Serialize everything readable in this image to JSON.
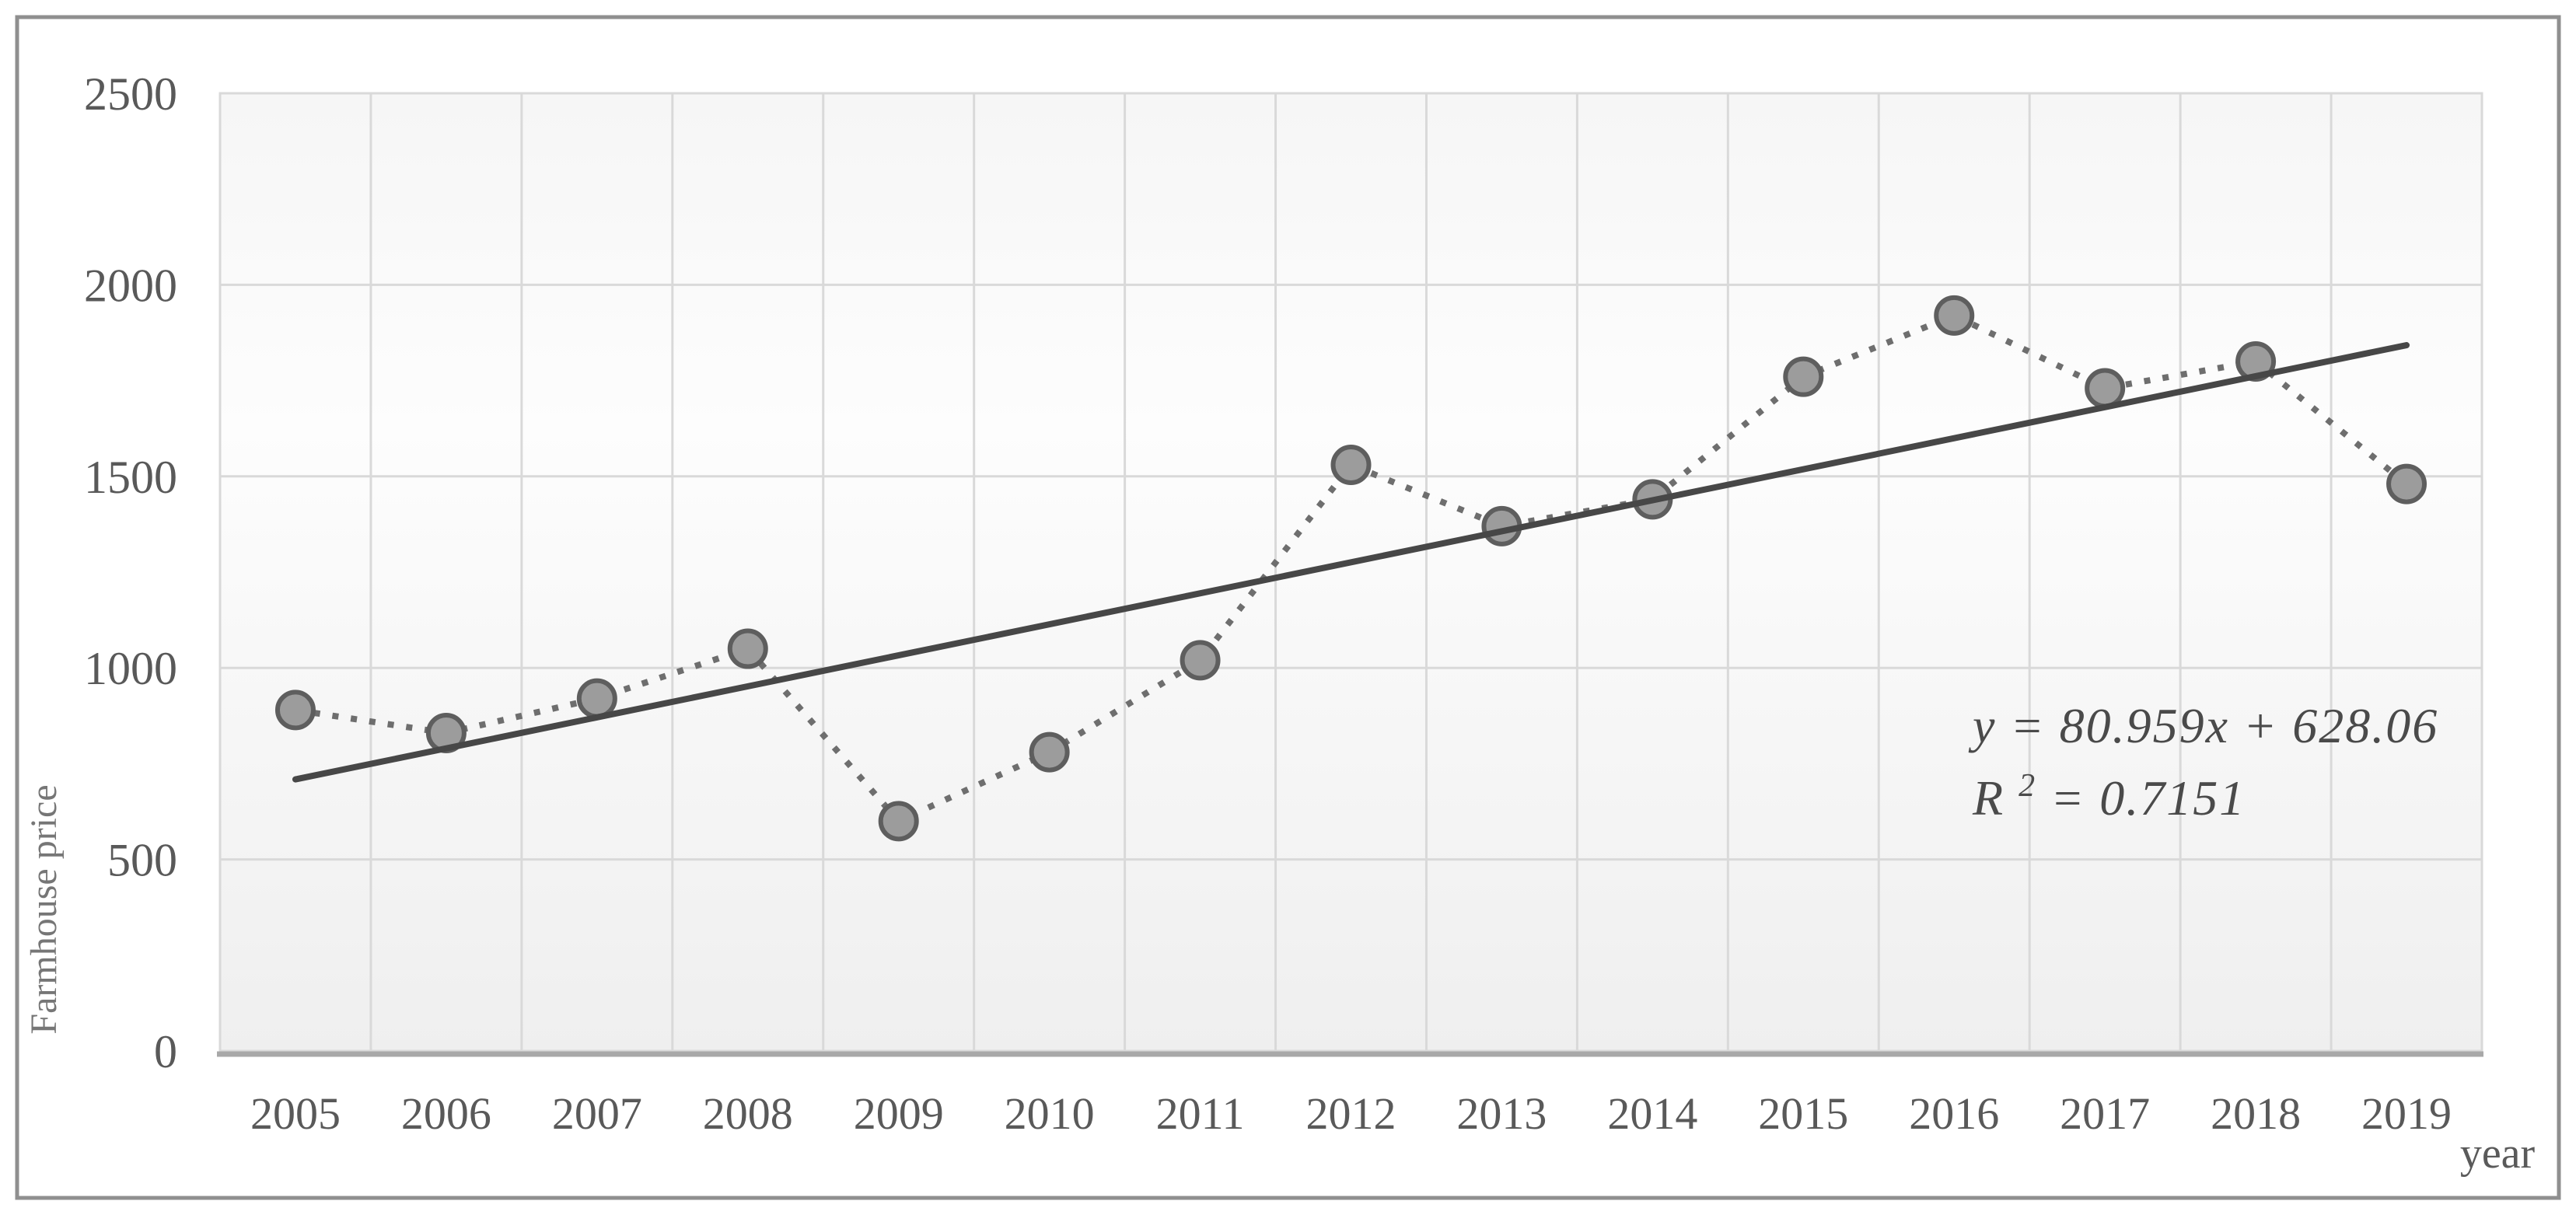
{
  "chart_data": {
    "type": "scatter",
    "title": "",
    "categories": [
      "2005",
      "2006",
      "2007",
      "2008",
      "2009",
      "2010",
      "2011",
      "2012",
      "2013",
      "2014",
      "2015",
      "2016",
      "2017",
      "2018",
      "2019"
    ],
    "series": [
      {
        "name": "Farmhouse price",
        "values": [
          890,
          830,
          920,
          1050,
          600,
          780,
          1020,
          1530,
          1370,
          1440,
          1760,
          1920,
          1730,
          1800,
          1480
        ]
      }
    ],
    "xlabel": "year",
    "ylabel": "Farmhouse  price",
    "y_ticks": [
      0,
      500,
      1000,
      1500,
      2000,
      2500
    ],
    "ylim": [
      0,
      2500
    ],
    "grid": true,
    "legend_position": "none",
    "marker": "circle",
    "series_line_style": "dotted",
    "trendline": {
      "type": "linear",
      "equation": "y = 80.959x + 628.06",
      "r2_text": "R² = 0.7151",
      "r2_prefix": "R",
      "r2_sup": "2",
      "r2_rest": " = 0.7151",
      "slope": 80.959,
      "intercept": 628.06,
      "x_index_domain": [
        1,
        15
      ]
    }
  },
  "colors": {
    "frame_border": "#8f8f8f",
    "plot_border": "#d9d9d9",
    "gridline": "#d9d9d9",
    "axis_line": "#a8a8a8",
    "plot_bg_top": "#f6f6f6",
    "plot_bg_mid": "#fdfdfd",
    "plot_bg_bottom": "#efefef",
    "marker_fill": "#9c9c9c",
    "marker_stroke": "#5e5e5e",
    "series_line": "#6e6e6e",
    "trend_line": "#474747",
    "tick_text": "#595959"
  }
}
